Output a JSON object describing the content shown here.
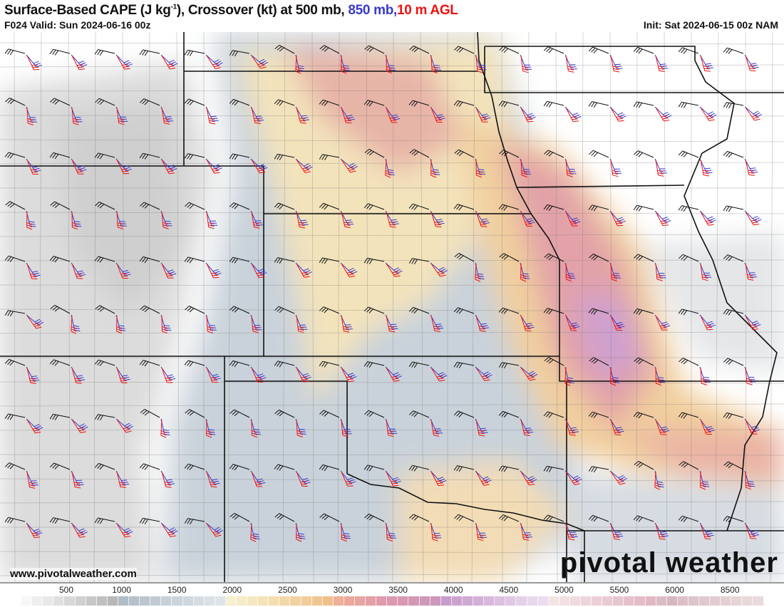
{
  "header": {
    "title_main": "Surface-Based CAPE (J kg",
    "title_sup": "-1",
    "title_rest": "), Crossover (kt) at 500 mb, ",
    "title_850": "850 mb,",
    "title_10m": "10 m AGL",
    "valid": "F024 Valid: Sun 2024-06-16 00z",
    "init": "Init: Sat 2024-06-15 00z NAM"
  },
  "branding": {
    "website": "www.pivotalweather.com",
    "logo": "pivotal weather"
  },
  "colors": {
    "barb_500mb": "#111111",
    "barb_850mb": "#3a3acc",
    "barb_10m": "#ee1111"
  },
  "colorbar": {
    "labels": [
      "500",
      "1000",
      "1500",
      "2000",
      "2500",
      "3000",
      "3500",
      "4000",
      "4500",
      "5000",
      "5500",
      "6000",
      "8500"
    ],
    "colors": [
      "#ffffff",
      "#f7f7f7",
      "#efefef",
      "#e8e8e8",
      "#e0e0e0",
      "#d8d8d8",
      "#d0d0d0",
      "#c8c8c8",
      "#c0c0c0",
      "#b8b8b8",
      "#b0bcc6",
      "#b6c1cb",
      "#bcc6cf",
      "#c2cbd4",
      "#c8d0d8",
      "#ccd4dc",
      "#d0d8df",
      "#d5dde3",
      "#d9e1e6",
      "#dde5e9",
      "#f6f0d0",
      "#f5ecc8",
      "#f5e8c0",
      "#f4e3b8",
      "#f4deb0",
      "#f3d8a8",
      "#f2d2a0",
      "#f1cc98",
      "#f0c690",
      "#f0c08c",
      "#eeb098",
      "#eca89a",
      "#e8a4a0",
      "#e4a0a6",
      "#e09caa",
      "#dc98ae",
      "#d898b2",
      "#d498b6",
      "#cf98ba",
      "#cc98bc",
      "#c89ccc",
      "#cca2d0",
      "#d0a8d4",
      "#d4b0d8",
      "#d8b8dc",
      "#dcc0e0",
      "#e0c8e4",
      "#e4d0e8",
      "#e8d8ec",
      "#ecdcf0",
      "#f4e4e6",
      "#f2e0e3",
      "#f0dadf",
      "#eed5db",
      "#ecd0d7",
      "#eacbd3",
      "#e8c6cf",
      "#e6c1cb",
      "#e4bcc7",
      "#e2b8c3",
      "#dcbcc4",
      "#d8b8c0",
      "#dcc0c8",
      "#dec4cb",
      "#e0c8ce",
      "#e2ccd1",
      "#e4d0d4",
      "#e6d4d7",
      "#e8d8da",
      "#e8dadc"
    ]
  }
}
